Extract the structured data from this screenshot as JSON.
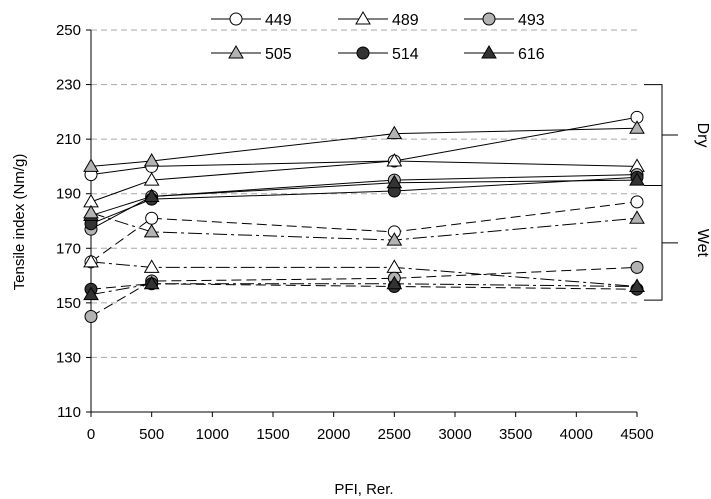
{
  "chart_data": {
    "type": "line",
    "xlabel": "PFI, Rer.",
    "ylabel": "Tensile index (Nm/g)",
    "xlim": [
      0,
      4500
    ],
    "ylim": [
      110,
      250
    ],
    "x_ticks": [
      "0",
      "500",
      "1000",
      "1500",
      "2000",
      "2500",
      "3000",
      "3500",
      "4000",
      "4500"
    ],
    "y_ticks": [
      "110",
      "130",
      "150",
      "170",
      "190",
      "210",
      "230",
      "250"
    ],
    "x": [
      0,
      500,
      2500,
      4500
    ],
    "grid": "horizontal dashed",
    "legend_position": "top",
    "group_labels": [
      {
        "label": "Dry",
        "range": [
          193,
          230
        ]
      },
      {
        "label": "Wet",
        "range": [
          151,
          193
        ]
      }
    ],
    "series": [
      {
        "name": "449",
        "condition": "dry",
        "line": "solid",
        "marker": "circle",
        "fill": "#ffffff",
        "values": [
          197,
          200,
          202,
          218
        ]
      },
      {
        "name": "489",
        "condition": "dry",
        "line": "solid",
        "marker": "triangle",
        "fill": "#ffffff",
        "values": [
          187,
          195,
          202,
          200
        ]
      },
      {
        "name": "493",
        "condition": "dry",
        "line": "solid",
        "marker": "circle",
        "fill": "#b3b3b3",
        "values": [
          177,
          189,
          195,
          197
        ]
      },
      {
        "name": "505",
        "condition": "dry",
        "line": "solid",
        "marker": "triangle",
        "fill": "#b3b3b3",
        "values": [
          200,
          202,
          212,
          214
        ]
      },
      {
        "name": "514",
        "condition": "dry",
        "line": "solid",
        "marker": "circle",
        "fill": "#333333",
        "values": [
          179,
          188,
          191,
          196
        ]
      },
      {
        "name": "616",
        "condition": "dry",
        "line": "solid",
        "marker": "triangle",
        "fill": "#333333",
        "values": [
          182,
          189,
          194,
          195
        ]
      },
      {
        "name": "449",
        "condition": "wet",
        "line": "dashed",
        "marker": "circle",
        "fill": "#ffffff",
        "values": [
          165,
          181,
          176,
          187
        ]
      },
      {
        "name": "489",
        "condition": "wet",
        "line": "dashed",
        "marker": "triangle",
        "fill": "#ffffff",
        "values": [
          165,
          163,
          163,
          156
        ]
      },
      {
        "name": "493",
        "condition": "wet",
        "line": "dashed",
        "marker": "circle",
        "fill": "#b3b3b3",
        "values": [
          145,
          158,
          159,
          163
        ]
      },
      {
        "name": "505",
        "condition": "wet",
        "line": "dashed",
        "marker": "triangle",
        "fill": "#b3b3b3",
        "values": [
          183,
          176,
          173,
          181
        ]
      },
      {
        "name": "514",
        "condition": "wet",
        "line": "dashed",
        "marker": "circle",
        "fill": "#333333",
        "values": [
          155,
          157,
          156,
          155
        ]
      },
      {
        "name": "616",
        "condition": "wet",
        "line": "dashed",
        "marker": "triangle",
        "fill": "#333333",
        "values": [
          153,
          157,
          157,
          156
        ]
      }
    ],
    "legend": [
      {
        "label": "449",
        "marker": "circle",
        "fill": "#ffffff"
      },
      {
        "label": "489",
        "marker": "triangle",
        "fill": "#ffffff"
      },
      {
        "label": "493",
        "marker": "circle",
        "fill": "#b3b3b3"
      },
      {
        "label": "505",
        "marker": "triangle",
        "fill": "#b3b3b3"
      },
      {
        "label": "514",
        "marker": "circle",
        "fill": "#333333"
      },
      {
        "label": "616",
        "marker": "triangle",
        "fill": "#333333"
      }
    ]
  }
}
